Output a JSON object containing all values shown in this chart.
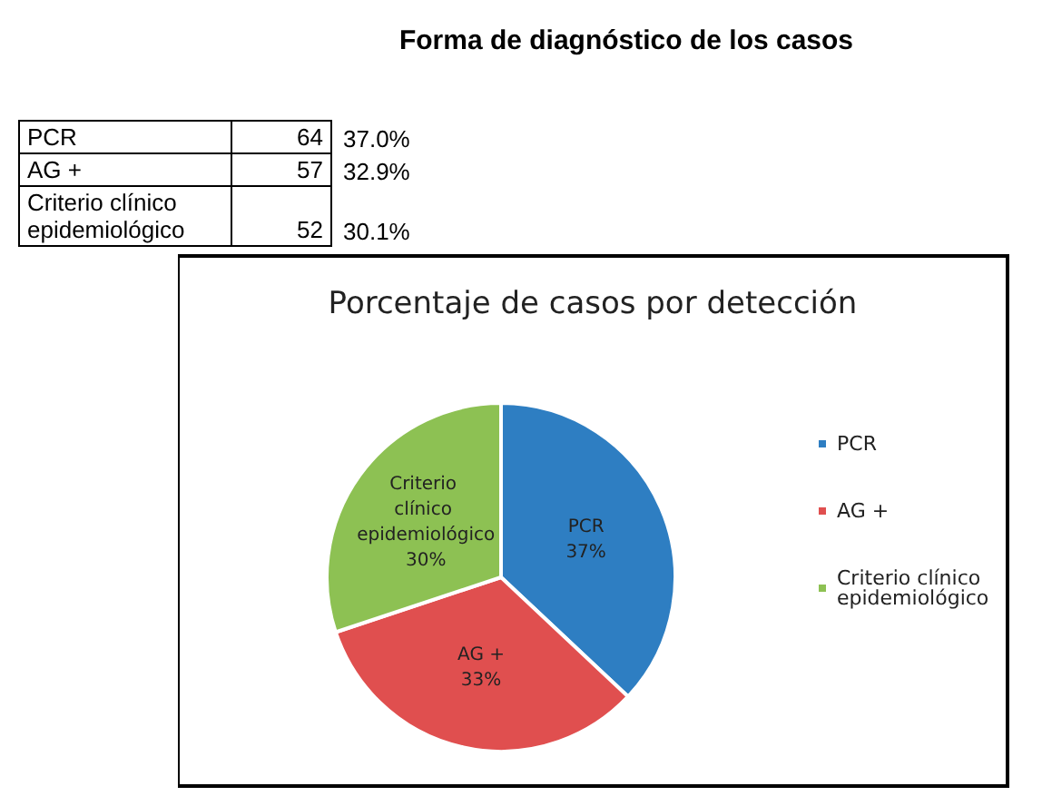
{
  "chart_data": {
    "type": "pie",
    "title": "Forma de diagnóstico de los casos",
    "subtitle": "Porcentaje de casos por detección",
    "categories": [
      "PCR",
      "AG +",
      "Criterio clínico epidemiológico"
    ],
    "values": [
      37.0,
      32.9,
      30.1
    ],
    "colors": [
      "#2e7ec2",
      "#e04f4f",
      "#8dc153"
    ],
    "value_labels": [
      "37%",
      "33%",
      "30%"
    ],
    "annotations": [
      "64",
      "37.0%",
      "57",
      "32.9%",
      "52",
      "30.1%"
    ],
    "legend": "right"
  }
}
